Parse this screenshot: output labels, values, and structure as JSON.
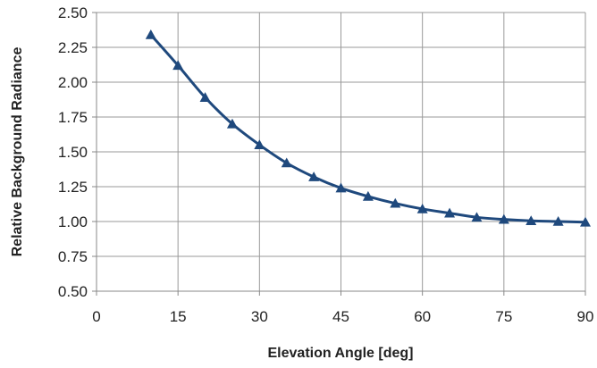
{
  "chart_data": {
    "type": "line",
    "title": "",
    "xlabel": "Elevation Angle [deg]",
    "ylabel": "Relative Background Radiance",
    "xlim": [
      0,
      90
    ],
    "ylim": [
      0.5,
      2.5
    ],
    "xticks": [
      "0",
      "15",
      "30",
      "45",
      "60",
      "75",
      "90"
    ],
    "xtick_values": [
      0,
      15,
      30,
      45,
      60,
      75,
      90
    ],
    "yticks": [
      "0.50",
      "0.75",
      "1.00",
      "1.25",
      "1.50",
      "1.75",
      "2.00",
      "2.25",
      "2.50"
    ],
    "ytick_values": [
      0.5,
      0.75,
      1.0,
      1.25,
      1.5,
      1.75,
      2.0,
      2.25,
      2.5
    ],
    "grid": true,
    "legend": "none",
    "series": [
      {
        "color": "#1f497d",
        "marker": "triangle",
        "x": [
          10,
          15,
          20,
          25,
          30,
          35,
          40,
          45,
          50,
          55,
          60,
          65,
          70,
          75,
          80,
          85,
          90
        ],
        "y": [
          2.34,
          2.12,
          1.89,
          1.7,
          1.55,
          1.42,
          1.32,
          1.24,
          1.18,
          1.13,
          1.09,
          1.06,
          1.03,
          1.015,
          1.005,
          1.0,
          0.995
        ]
      }
    ]
  }
}
